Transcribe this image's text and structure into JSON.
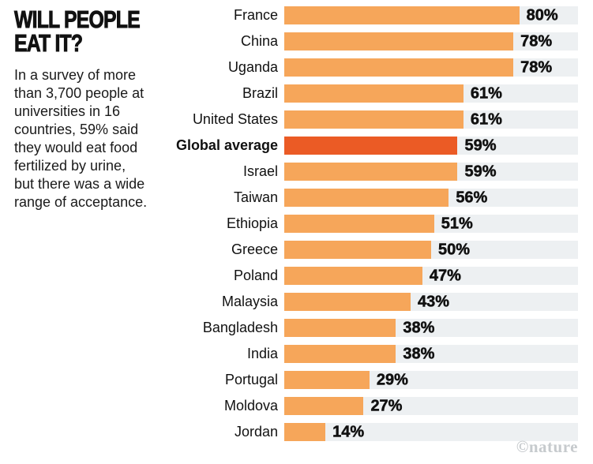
{
  "title": "WILL PEOPLE\nEAT IT?",
  "description": "In a survey of more\nthan 3,700 people at\nuniversities in 16\ncountries, 59% said\nthey would eat food\nfertilized by urine,\nbut there was a wide\nrange of acceptance.",
  "watermark": "©nature",
  "colors": {
    "bar": "#F6A65A",
    "highlight": "#EB5B25",
    "track": "#EDF0F2",
    "text": "#111111",
    "watermark": "#C6CACD"
  },
  "chart_data": {
    "type": "bar",
    "orientation": "horizontal",
    "title": "WILL PEOPLE EAT IT?",
    "categories": [
      "France",
      "China",
      "Uganda",
      "Brazil",
      "United States",
      "Global average",
      "Israel",
      "Taiwan",
      "Ethiopia",
      "Greece",
      "Poland",
      "Malaysia",
      "Bangladesh",
      "India",
      "Portugal",
      "Moldova",
      "Jordan"
    ],
    "values": [
      80,
      78,
      78,
      61,
      61,
      59,
      59,
      56,
      51,
      50,
      47,
      43,
      38,
      38,
      29,
      27,
      14
    ],
    "value_suffix": "%",
    "highlight_category": "Global average",
    "xlim": [
      0,
      100
    ],
    "grid": false,
    "legend": false
  }
}
